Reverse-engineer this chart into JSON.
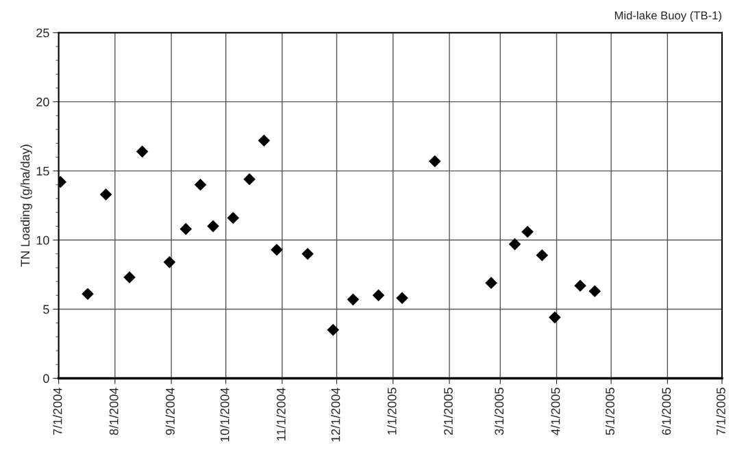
{
  "chart_data": {
    "type": "scatter",
    "title": "Mid-lake Buoy (TB-1)",
    "ylabel": "TN Loading (g/ha/day)",
    "x": [
      "2004-07-02",
      "2004-07-17",
      "2004-07-27",
      "2004-08-09",
      "2004-08-16",
      "2004-08-31",
      "2004-09-09",
      "2004-09-17",
      "2004-09-24",
      "2004-10-05",
      "2004-10-14",
      "2004-10-22",
      "2004-10-29",
      "2004-11-15",
      "2004-11-29",
      "2004-12-10",
      "2004-12-24",
      "2005-01-06",
      "2005-01-24",
      "2005-02-24",
      "2005-03-09",
      "2005-03-16",
      "2005-03-24",
      "2005-03-31",
      "2005-04-14",
      "2005-04-22"
    ],
    "series": [
      {
        "color": "#000000",
        "values": [
          14.2,
          6.1,
          13.3,
          7.3,
          16.4,
          8.4,
          10.8,
          14.0,
          11.0,
          11.6,
          14.4,
          17.2,
          9.3,
          9.0,
          3.5,
          5.7,
          6.0,
          5.8,
          15.7,
          6.9,
          9.7,
          10.6,
          8.9,
          4.4,
          6.7,
          6.3
        ]
      }
    ],
    "xlim": [
      "2004-07-01",
      "2005-07-01"
    ],
    "xticks": [
      {
        "value": "2004-07-01",
        "label": "7/1/2004"
      },
      {
        "value": "2004-08-01",
        "label": "8/1/2004"
      },
      {
        "value": "2004-09-01",
        "label": "9/1/2004"
      },
      {
        "value": "2004-10-01",
        "label": "10/1/2004"
      },
      {
        "value": "2004-11-01",
        "label": "11/1/2004"
      },
      {
        "value": "2004-12-01",
        "label": "12/1/2004"
      },
      {
        "value": "2005-01-01",
        "label": "1/1/2005"
      },
      {
        "value": "2005-02-01",
        "label": "2/1/2005"
      },
      {
        "value": "2005-03-01",
        "label": "3/1/2005"
      },
      {
        "value": "2005-04-01",
        "label": "4/1/2005"
      },
      {
        "value": "2005-05-01",
        "label": "5/1/2005"
      },
      {
        "value": "2005-06-01",
        "label": "6/1/2005"
      },
      {
        "value": "2005-07-01",
        "label": "7/1/2005"
      }
    ],
    "ylim": [
      0,
      25
    ],
    "yticks": [
      0,
      5,
      10,
      15,
      20,
      25
    ],
    "grid": true,
    "marker": "diamond",
    "legend": false
  }
}
